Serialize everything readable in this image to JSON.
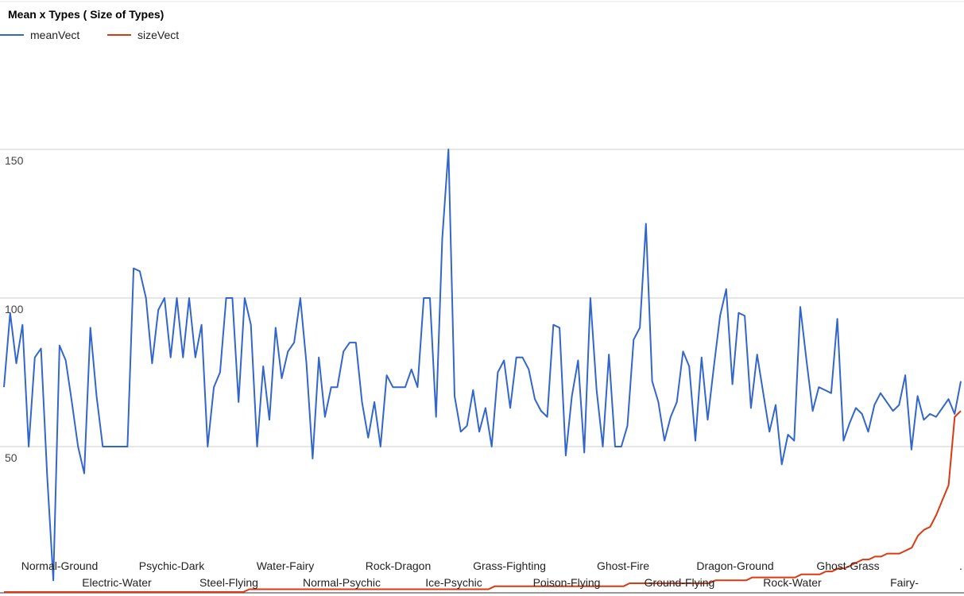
{
  "chart_data": {
    "type": "line",
    "title": "Mean x Types ( Size of Types)",
    "xlabel": "",
    "ylabel": "",
    "ylim": [
      15,
      200
    ],
    "yticks": [
      50,
      100,
      150
    ],
    "grid": true,
    "legend_position": "top-left",
    "x_tick_labels_row1": [
      "Normal-Ground",
      "Psychic-Dark",
      "Water-Fairy",
      "Rock-Dragon",
      "Grass-Fighting",
      "Ghost-Fire",
      "Dragon-Ground",
      "Ghost-Grass",
      "."
    ],
    "x_tick_labels_row2": [
      "Electric-Water",
      "Steel-Flying",
      "Normal-Psychic",
      "Ice-Psychic",
      "Poison-Flying",
      "Ground-Flying",
      "Rock-Water",
      "Fairy-"
    ],
    "series": [
      {
        "name": "meanVect",
        "color": "#3366cc",
        "values": [
          70,
          95,
          78,
          91,
          50,
          80,
          83,
          40,
          5,
          84,
          79,
          65,
          50,
          41,
          90,
          67,
          50,
          50,
          50,
          50,
          50,
          110,
          109,
          100,
          78,
          96,
          100,
          80,
          100,
          80,
          100,
          80,
          91,
          50,
          70,
          75,
          100,
          100,
          65,
          100,
          91,
          50,
          77,
          59,
          90,
          73,
          82,
          85,
          100,
          78,
          46,
          80,
          60,
          70,
          70,
          82,
          85,
          85,
          65,
          53,
          65,
          50,
          74,
          70,
          70,
          70,
          76,
          70,
          100,
          100,
          60,
          120,
          150,
          67,
          55,
          57,
          69,
          55,
          63,
          50,
          75,
          79,
          63,
          80,
          80,
          76,
          66,
          62,
          60,
          91,
          90,
          47,
          67,
          79,
          48,
          100,
          69,
          50,
          81,
          50,
          50,
          57,
          86,
          90,
          125,
          72,
          65,
          52,
          60,
          65,
          82,
          77,
          52,
          80,
          59,
          77,
          94,
          103,
          71,
          95,
          94,
          63,
          81,
          68,
          55,
          64,
          44,
          54,
          52,
          97,
          79,
          62,
          70,
          69,
          68,
          93,
          52,
          58,
          63,
          61,
          55,
          64,
          68,
          65,
          62,
          64,
          74,
          49,
          67,
          59,
          61,
          60,
          63,
          66,
          61,
          72
        ],
        "first_label": "Normal-Ground"
      },
      {
        "name": "sizeVect",
        "color": "#dc3912",
        "values": [
          1,
          1,
          1,
          1,
          1,
          1,
          1,
          1,
          1,
          1,
          1,
          1,
          1,
          1,
          1,
          1,
          1,
          1,
          1,
          1,
          1,
          1,
          1,
          1,
          1,
          1,
          1,
          1,
          1,
          1,
          1,
          1,
          1,
          1,
          1,
          1,
          1,
          1,
          1,
          1,
          2,
          2,
          2,
          2,
          2,
          2,
          2,
          2,
          2,
          2,
          2,
          2,
          2,
          2,
          2,
          2,
          2,
          2,
          2,
          2,
          2,
          2,
          2,
          2,
          2,
          2,
          2,
          2,
          2,
          2,
          2,
          2,
          2,
          2,
          2,
          2,
          2,
          2,
          2,
          2,
          3,
          3,
          3,
          3,
          3,
          3,
          3,
          3,
          3,
          3,
          3,
          3,
          3,
          3,
          3,
          3,
          3,
          3,
          3,
          3,
          3,
          3,
          4,
          4,
          4,
          4,
          4,
          4,
          4,
          4,
          4,
          4,
          4,
          4,
          4,
          4,
          5,
          5,
          5,
          5,
          5,
          5,
          6,
          6,
          6,
          6,
          6,
          6,
          6,
          6,
          7,
          7,
          7,
          7,
          8,
          8,
          9,
          9,
          10,
          11,
          12,
          12,
          13,
          13,
          14,
          14,
          14,
          15,
          16,
          20,
          22,
          23,
          27,
          32,
          37,
          60,
          62
        ]
      }
    ]
  }
}
